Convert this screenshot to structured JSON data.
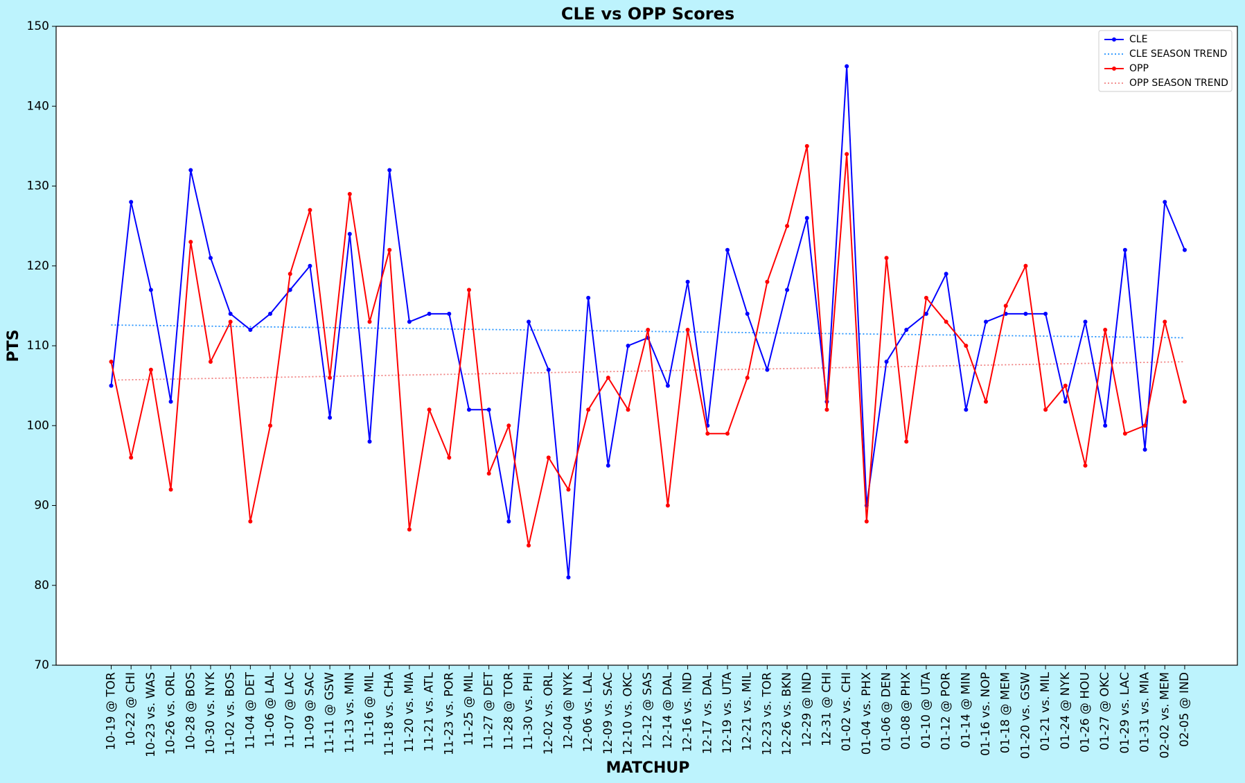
{
  "chart_data": {
    "type": "line",
    "title": "CLE vs OPP Scores",
    "x_label": "MATCHUP",
    "y_label": "PTS",
    "categories": [
      "10-19 @ TOR",
      "10-22 @ CHI",
      "10-23 vs. WAS",
      "10-26 vs. ORL",
      "10-28 @ BOS",
      "10-30 vs. NYK",
      "11-02 vs. BOS",
      "11-04 @ DET",
      "11-06 @ LAL",
      "11-07 @ LAC",
      "11-09 @ SAC",
      "11-11 @ GSW",
      "11-13 vs. MIN",
      "11-16 @ MIL",
      "11-18 vs. CHA",
      "11-20 vs. MIA",
      "11-21 vs. ATL",
      "11-23 vs. POR",
      "11-25 @ MIL",
      "11-27 @ DET",
      "11-28 @ TOR",
      "11-30 vs. PHI",
      "12-02 vs. ORL",
      "12-04 @ NYK",
      "12-06 vs. LAL",
      "12-09 vs. SAC",
      "12-10 vs. OKC",
      "12-12 @ SAS",
      "12-14 @ DAL",
      "12-16 vs. IND",
      "12-17 vs. DAL",
      "12-19 vs. UTA",
      "12-21 vs. MIL",
      "12-23 vs. TOR",
      "12-26 vs. BKN",
      "12-29 @ IND",
      "12-31 @ CHI",
      "01-02 vs. CHI",
      "01-04 vs. PHX",
      "01-06 @ DEN",
      "01-08 @ PHX",
      "01-10 @ UTA",
      "01-12 @ POR",
      "01-14 @ MIN",
      "01-16 vs. NOP",
      "01-18 @ MEM",
      "01-20 vs. GSW",
      "01-21 vs. MIL",
      "01-24 @ NYK",
      "01-26 @ HOU",
      "01-27 @ OKC",
      "01-29 vs. LAC",
      "01-31 vs. MIA",
      "02-02 vs. MEM",
      "02-05 @ IND"
    ],
    "series": [
      {
        "name": "CLE",
        "color": "#0000ff",
        "values": [
          105,
          128,
          117,
          103,
          132,
          121,
          114,
          112,
          114,
          117,
          120,
          101,
          124,
          98,
          132,
          113,
          114,
          114,
          102,
          102,
          88,
          113,
          107,
          81,
          116,
          95,
          110,
          111,
          105,
          118,
          100,
          122,
          114,
          107,
          117,
          126,
          103,
          145,
          90,
          108,
          112,
          114,
          119,
          102,
          113,
          114,
          114,
          114,
          103,
          113,
          100,
          122,
          97,
          128,
          122
        ]
      },
      {
        "name": "OPP",
        "color": "#ff0000",
        "values": [
          108,
          96,
          107,
          92,
          123,
          108,
          113,
          88,
          100,
          119,
          127,
          106,
          129,
          113,
          122,
          87,
          102,
          96,
          117,
          94,
          100,
          85,
          96,
          92,
          102,
          106,
          102,
          112,
          90,
          112,
          99,
          99,
          106,
          118,
          125,
          135,
          102,
          134,
          88,
          121,
          98,
          116,
          113,
          110,
          103,
          115,
          120,
          102,
          105,
          95,
          112,
          99,
          100,
          113,
          103
        ]
      }
    ],
    "trends": [
      {
        "name": "CLE SEASON TREND",
        "color": "#1e90ff",
        "start": 112.6,
        "end": 111.0
      },
      {
        "name": "OPP SEASON TREND",
        "color": "#f08080",
        "start": 105.7,
        "end": 108.0
      }
    ],
    "ylim": [
      70,
      150
    ],
    "yticks": [
      70,
      80,
      90,
      100,
      110,
      120,
      130,
      140,
      150
    ],
    "legend": "upper right"
  }
}
